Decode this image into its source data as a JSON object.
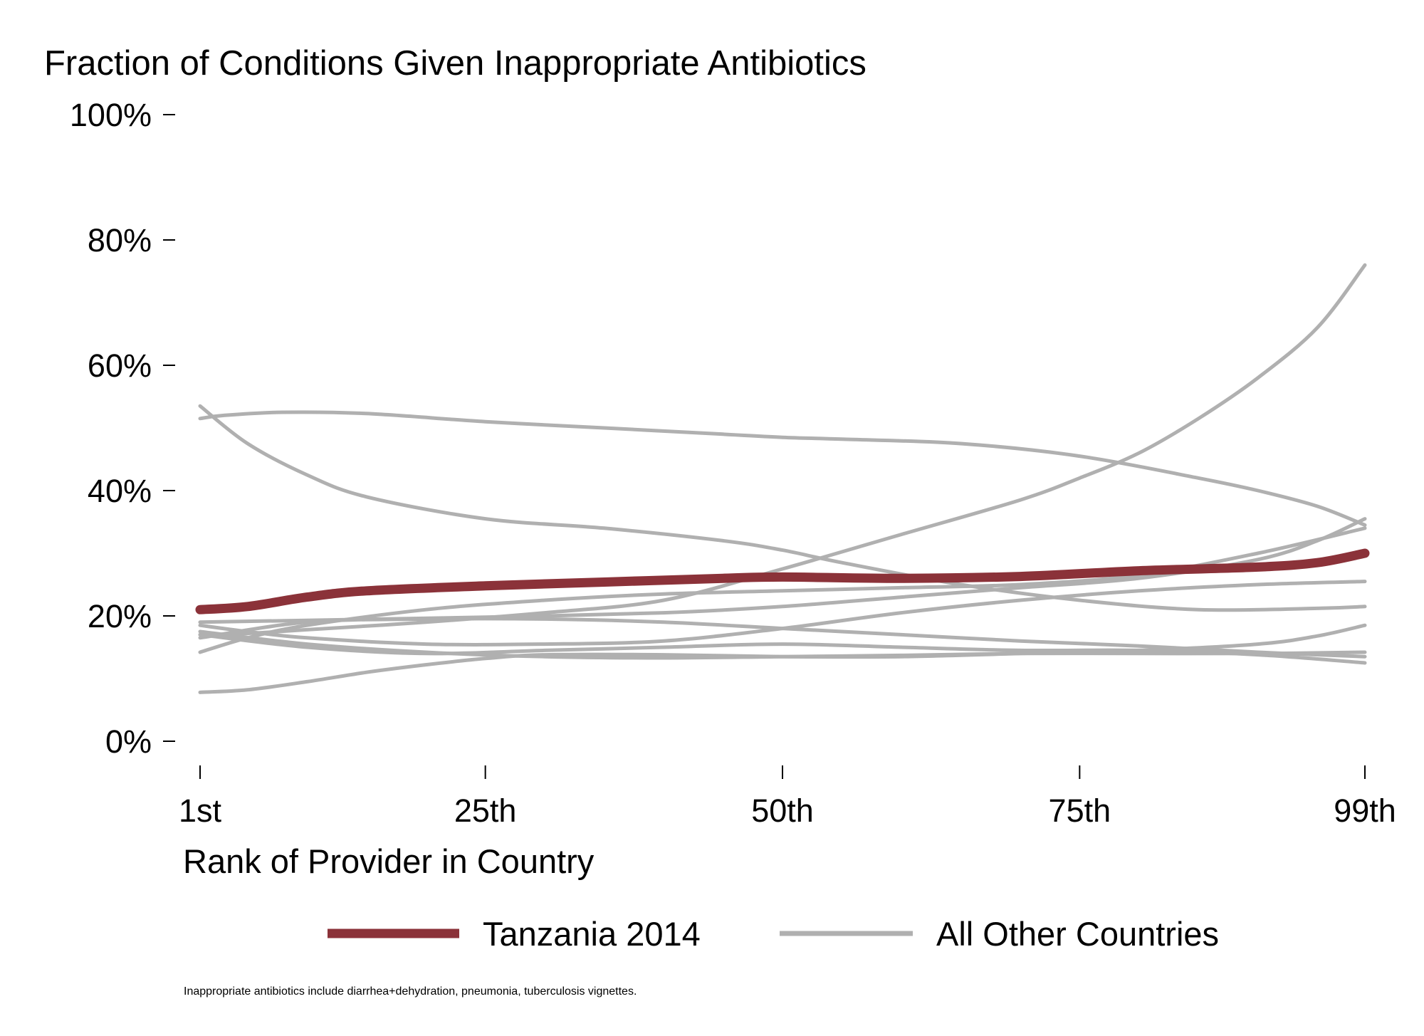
{
  "chart_data": {
    "type": "line",
    "title": "Fraction of Conditions Given Inappropriate Antibiotics",
    "xlabel": "Rank of Provider in Country",
    "ylabel": "",
    "x_ticks": [
      {
        "value": 1,
        "label": "1st"
      },
      {
        "value": 25,
        "label": "25th"
      },
      {
        "value": 50,
        "label": "50th"
      },
      {
        "value": 75,
        "label": "75th"
      },
      {
        "value": 99,
        "label": "99th"
      }
    ],
    "y_ticks": [
      {
        "value": 0,
        "label": "0%"
      },
      {
        "value": 20,
        "label": "20%"
      },
      {
        "value": 40,
        "label": "40%"
      },
      {
        "value": 60,
        "label": "60%"
      },
      {
        "value": 80,
        "label": "80%"
      },
      {
        "value": 100,
        "label": "100%"
      }
    ],
    "xlim": [
      1,
      99
    ],
    "ylim": [
      0,
      100
    ],
    "grid": false,
    "legend_position": "bottom",
    "legend": [
      {
        "label": "Tanzania 2014",
        "color": "#8b3239"
      },
      {
        "label": "All Other Countries",
        "color": "#b0b0b0"
      }
    ],
    "note": "Inappropriate antibiotics include diarrhea+dehydration, pneumonia, tuberculosis vignettes.",
    "series": [
      {
        "group": "Tanzania 2014",
        "highlight": true,
        "x": [
          1,
          5,
          10,
          15,
          25,
          35,
          45,
          50,
          60,
          70,
          80,
          90,
          95,
          99
        ],
        "y": [
          21,
          21.5,
          23,
          24,
          24.8,
          25.4,
          26,
          26.2,
          26,
          26.3,
          27.2,
          27.8,
          28.5,
          30
        ]
      },
      {
        "group": "All Other Countries",
        "highlight": false,
        "x": [
          1,
          5,
          10,
          20,
          30,
          40,
          50,
          60,
          70,
          75,
          80,
          85,
          90,
          95,
          99
        ],
        "y": [
          17,
          17.2,
          17.8,
          19,
          20.5,
          22.5,
          27.5,
          33,
          38.5,
          42,
          46,
          51.5,
          58,
          66,
          76
        ]
      },
      {
        "group": "All Other Countries",
        "highlight": false,
        "x": [
          1,
          3,
          8,
          15,
          25,
          35,
          45,
          50,
          55,
          65,
          75,
          85,
          90,
          95,
          99
        ],
        "y": [
          51.5,
          52,
          52.5,
          52.3,
          51,
          50,
          49,
          48.5,
          48.2,
          47.5,
          45.5,
          42,
          40,
          37.5,
          34.5
        ]
      },
      {
        "group": "All Other Countries",
        "highlight": false,
        "x": [
          1,
          5,
          10,
          15,
          25,
          35,
          45,
          50,
          55,
          65,
          75,
          85,
          95,
          99
        ],
        "y": [
          53.5,
          47.5,
          42.5,
          39,
          35.5,
          34,
          32,
          30.5,
          28.5,
          25,
          22.5,
          21,
          21.2,
          21.5
        ]
      },
      {
        "group": "All Other Countries",
        "highlight": false,
        "x": [
          1,
          10,
          25,
          40,
          50,
          60,
          70,
          80,
          90,
          95,
          99
        ],
        "y": [
          19,
          19.3,
          19.8,
          20.5,
          21.5,
          23,
          24.5,
          26,
          29,
          32,
          35.5
        ]
      },
      {
        "group": "All Other Countries",
        "highlight": false,
        "x": [
          1,
          5,
          10,
          20,
          30,
          40,
          50,
          60,
          70,
          80,
          90,
          99
        ],
        "y": [
          14.2,
          16.5,
          18.5,
          21,
          22.5,
          23.5,
          24,
          24.5,
          25,
          26.5,
          30,
          34
        ]
      },
      {
        "group": "All Other Countries",
        "highlight": false,
        "x": [
          1,
          5,
          10,
          20,
          30,
          40,
          50,
          60,
          70,
          80,
          90,
          99
        ],
        "y": [
          18.5,
          17.5,
          16.5,
          15.5,
          15.5,
          16,
          18,
          20.5,
          22.5,
          24,
          25,
          25.5
        ]
      },
      {
        "group": "All Other Countries",
        "highlight": false,
        "x": [
          1,
          10,
          20,
          30,
          40,
          50,
          60,
          70,
          80,
          90,
          99
        ],
        "y": [
          16.5,
          19,
          19.5,
          19.5,
          19,
          18,
          17,
          16,
          15.2,
          14.2,
          13.5
        ]
      },
      {
        "group": "All Other Countries",
        "highlight": false,
        "x": [
          1,
          10,
          20,
          30,
          40,
          50,
          60,
          70,
          80,
          90,
          99
        ],
        "y": [
          17.5,
          15.5,
          14.2,
          13.5,
          13.3,
          13.5,
          13.7,
          14,
          14,
          14,
          14.2
        ]
      },
      {
        "group": "All Other Countries",
        "highlight": false,
        "x": [
          1,
          10,
          20,
          30,
          40,
          50,
          60,
          70,
          80,
          90,
          99
        ],
        "y": [
          17,
          15,
          14,
          14.5,
          15,
          15.5,
          15,
          14.5,
          14.5,
          13.8,
          12.5
        ]
      },
      {
        "group": "All Other Countries",
        "highlight": false,
        "x": [
          1,
          5,
          10,
          15,
          20,
          25,
          30,
          40,
          50,
          60,
          70,
          80,
          90,
          95,
          99
        ],
        "y": [
          7.8,
          8.2,
          9.5,
          11,
          12.2,
          13.2,
          13.8,
          13.8,
          13.5,
          13.5,
          14,
          14.5,
          15.5,
          16.8,
          18.5
        ]
      }
    ]
  }
}
